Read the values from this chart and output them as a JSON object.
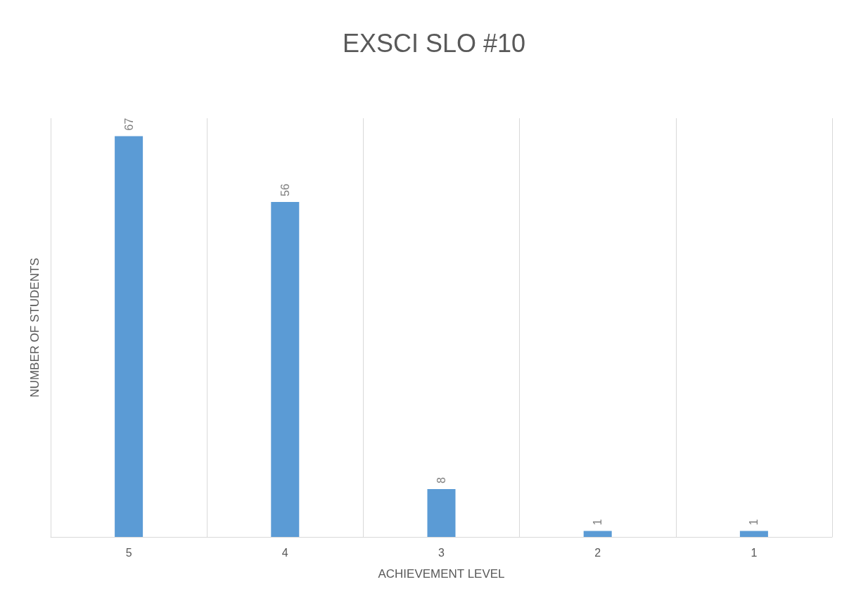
{
  "chart_data": {
    "type": "bar",
    "title": "EXSCI SLO #10",
    "xlabel": "ACHIEVEMENT LEVEL",
    "ylabel": "NUMBER OF STUDENTS",
    "categories": [
      "5",
      "4",
      "3",
      "2",
      "1"
    ],
    "values": [
      67,
      56,
      8,
      1,
      1
    ],
    "color": "#5b9bd5",
    "data_labels": true,
    "grid": "x"
  }
}
